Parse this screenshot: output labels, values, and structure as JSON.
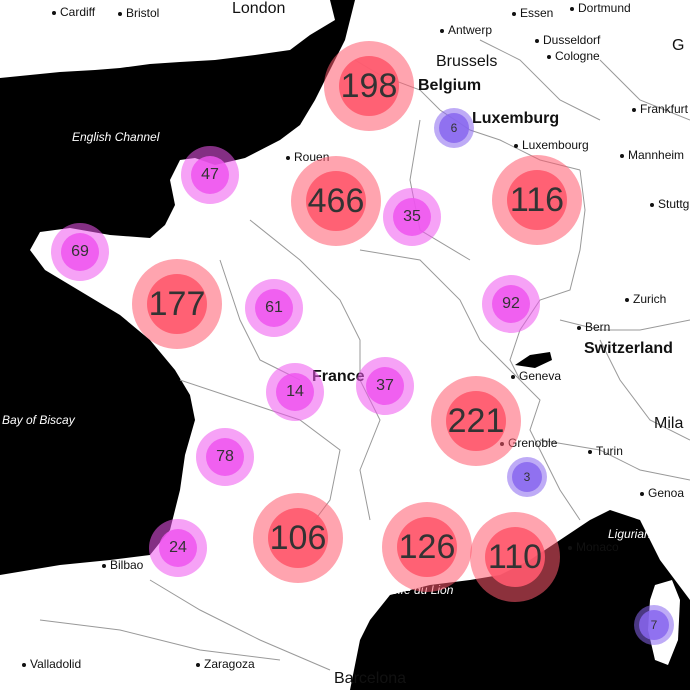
{
  "map": {
    "colors": {
      "water": "#000000",
      "land": "#ffffff",
      "border": "#888888",
      "large": "#ff5a6e",
      "medium": "#ee55ee",
      "small": "#8866ee"
    },
    "water_labels": [
      {
        "name": "Channel"
      },
      {
        "name": "English Channel"
      },
      {
        "name": "Bay of Biscay"
      },
      {
        "name": "Golfe du Lion"
      },
      {
        "name": "Ligurian Sea"
      }
    ],
    "country_labels": [
      {
        "name": "Belgium"
      },
      {
        "name": "Luxemburg"
      },
      {
        "name": "Switzerland"
      },
      {
        "name": "France"
      }
    ],
    "city_labels": [
      {
        "name": "Cardiff"
      },
      {
        "name": "Bristol"
      },
      {
        "name": "London"
      },
      {
        "name": "Essen"
      },
      {
        "name": "Dortmund"
      },
      {
        "name": "Antwerp"
      },
      {
        "name": "Dusseldorf"
      },
      {
        "name": "Brussels"
      },
      {
        "name": "Cologne"
      },
      {
        "name": "Frankfurt"
      },
      {
        "name": "Luxembourg"
      },
      {
        "name": "Mannheim"
      },
      {
        "name": "Rouen"
      },
      {
        "name": "Stuttg"
      },
      {
        "name": "Zurich"
      },
      {
        "name": "Bern"
      },
      {
        "name": "Geneva"
      },
      {
        "name": "Grenoble"
      },
      {
        "name": "Turin"
      },
      {
        "name": "Mila"
      },
      {
        "name": "Genoa"
      },
      {
        "name": "Monaco"
      },
      {
        "name": "Bilbao"
      },
      {
        "name": "Valladolid"
      },
      {
        "name": "Zaragoza"
      },
      {
        "name": "Barcelona"
      },
      {
        "name": "G"
      }
    ],
    "clusters": [
      {
        "count": "198",
        "size": "large"
      },
      {
        "count": "6",
        "size": "small"
      },
      {
        "count": "47",
        "size": "medium"
      },
      {
        "count": "466",
        "size": "large"
      },
      {
        "count": "35",
        "size": "medium"
      },
      {
        "count": "116",
        "size": "large"
      },
      {
        "count": "69",
        "size": "medium"
      },
      {
        "count": "177",
        "size": "large"
      },
      {
        "count": "61",
        "size": "medium"
      },
      {
        "count": "92",
        "size": "medium"
      },
      {
        "count": "14",
        "size": "medium"
      },
      {
        "count": "37",
        "size": "medium"
      },
      {
        "count": "221",
        "size": "large"
      },
      {
        "count": "3",
        "size": "small"
      },
      {
        "count": "78",
        "size": "medium"
      },
      {
        "count": "24",
        "size": "medium"
      },
      {
        "count": "106",
        "size": "large"
      },
      {
        "count": "126",
        "size": "large"
      },
      {
        "count": "110",
        "size": "large"
      },
      {
        "count": "7",
        "size": "small"
      }
    ]
  }
}
